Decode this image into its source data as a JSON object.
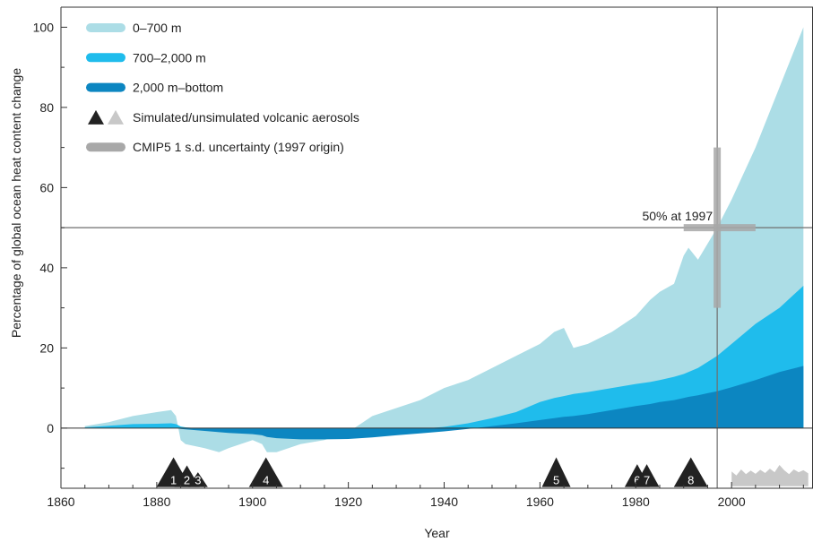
{
  "chart_data": {
    "type": "area",
    "title": "",
    "xlabel": "Year",
    "ylabel": "Percentage of global ocean heat content change",
    "xlim": [
      1860,
      2017
    ],
    "ylim": [
      -15,
      105
    ],
    "xticks": [
      1860,
      1880,
      1900,
      1920,
      1940,
      1960,
      1980,
      2000
    ],
    "yticks": [
      0,
      20,
      40,
      60,
      80,
      100
    ],
    "grid": false,
    "legend_position": "top-left",
    "x": [
      1865,
      1870,
      1875,
      1880,
      1883,
      1884,
      1885,
      1886,
      1888,
      1890,
      1893,
      1895,
      1900,
      1902,
      1903,
      1905,
      1910,
      1915,
      1920,
      1925,
      1930,
      1935,
      1940,
      1945,
      1950,
      1955,
      1960,
      1963,
      1965,
      1967,
      1970,
      1975,
      1980,
      1983,
      1985,
      1988,
      1990,
      1991,
      1993,
      1995,
      1997,
      2000,
      2005,
      2010,
      2015
    ],
    "series": [
      {
        "name": "0–700 m",
        "color": "#acdde6",
        "values": [
          0.5,
          1.5,
          3,
          4,
          4.5,
          3,
          -3,
          -4,
          -4.5,
          -5,
          -6,
          -5,
          -3,
          -4,
          -6,
          -6,
          -4,
          -3,
          -1,
          3,
          5,
          7,
          10,
          12,
          15,
          18,
          21,
          24,
          25,
          20,
          21,
          24,
          28,
          32,
          34,
          36,
          43,
          45,
          42,
          46,
          50,
          57,
          70,
          85,
          100
        ]
      },
      {
        "name": "700–2,000 m",
        "color": "#1fbcec",
        "values": [
          0.2,
          0.6,
          1,
          1.1,
          1.2,
          1,
          0.4,
          0.2,
          0,
          -0.3,
          -0.5,
          -0.6,
          -0.9,
          -1.2,
          -1.6,
          -1.8,
          -2,
          -2,
          -1.8,
          -1.3,
          -0.8,
          -0.2,
          0.3,
          1.2,
          2.5,
          4,
          6.5,
          7.5,
          8,
          8.5,
          9,
          10,
          11,
          11.5,
          12,
          12.8,
          13.5,
          14,
          15,
          16.5,
          18,
          21,
          26,
          30,
          35.5
        ]
      },
      {
        "name": "2,000 m–bottom",
        "color": "#0c86c1",
        "values": [
          0,
          0,
          0,
          0,
          0,
          0,
          -0.2,
          -0.3,
          -0.5,
          -0.7,
          -1,
          -1.2,
          -1.5,
          -1.8,
          -2.2,
          -2.5,
          -2.8,
          -2.8,
          -2.7,
          -2.3,
          -1.8,
          -1.3,
          -0.8,
          -0.2,
          0.5,
          1.2,
          2,
          2.5,
          2.8,
          3,
          3.5,
          4.5,
          5.5,
          6,
          6.5,
          7,
          7.5,
          7.8,
          8.2,
          8.7,
          9.2,
          10.2,
          12,
          14,
          15.5
        ]
      }
    ],
    "legend": [
      {
        "label": "0–700 m",
        "color": "#acdde6"
      },
      {
        "label": "700–2,000 m",
        "color": "#1fbcec"
      },
      {
        "label": "2,000 m–bottom",
        "color": "#0c86c1"
      },
      {
        "label": "Simulated/unsimulated volcanic aerosols",
        "color": "#222222",
        "color2": "#c8c8c8"
      },
      {
        "label": "CMIP5 1 s.d. uncertainty (1997 origin)",
        "color": "#a8a8a8"
      }
    ],
    "reference_lines": {
      "year": 1997,
      "percent": 50
    },
    "annotation": "50% at 1997",
    "uncertainty_cross": {
      "x_range": [
        1990,
        2005
      ],
      "y_range": [
        30,
        70
      ]
    },
    "volcanoes_simulated": [
      {
        "label": "1",
        "year": 1883.5
      },
      {
        "label": "2",
        "year": 1886.3
      },
      {
        "label": "3",
        "year": 1888.6
      },
      {
        "label": "4",
        "year": 1902.8
      },
      {
        "label": "5",
        "year": 1963.4
      },
      {
        "label": "6",
        "year": 1980.3
      },
      {
        "label": "7",
        "year": 1982.3
      },
      {
        "label": "8",
        "year": 1991.5
      }
    ],
    "unsimulated_aerosol_band": {
      "x": [
        2000,
        2001,
        2002,
        2003,
        2004,
        2005,
        2006,
        2007,
        2008,
        2009,
        2010,
        2011,
        2012,
        2013,
        2014,
        2015,
        2016
      ],
      "values": [
        -10.8,
        -11.8,
        -10.3,
        -11.5,
        -10.6,
        -11.4,
        -10.4,
        -11.2,
        -10.1,
        -11.0,
        -9.2,
        -10.5,
        -11.5,
        -10.3,
        -11.0,
        -10.5,
        -11.3
      ],
      "base": -14.5,
      "color": "#c8c8c8"
    }
  }
}
